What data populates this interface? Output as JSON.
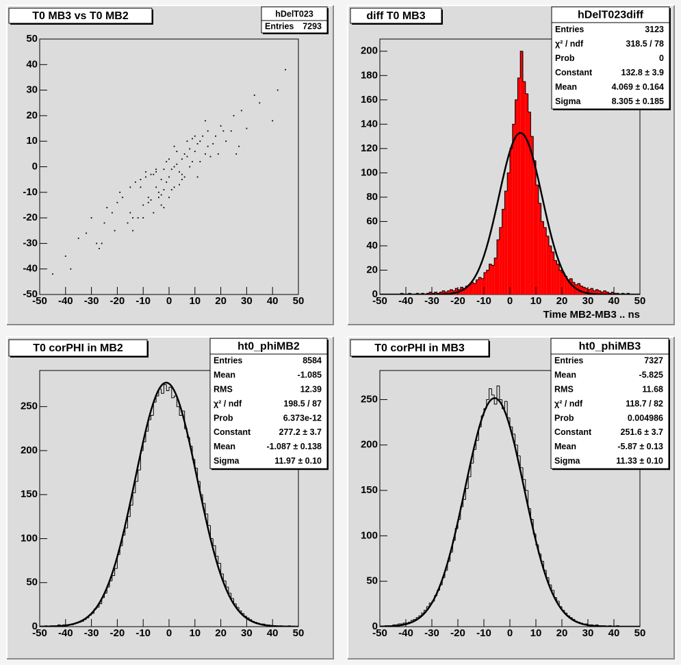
{
  "chart_data": [
    {
      "type": "scatter",
      "title": "T0 MB3 vs T0 MB2",
      "stats": {
        "title": "hDelT023",
        "rows": [
          [
            "Entries",
            "7293"
          ]
        ]
      },
      "xlim": [
        -50,
        50
      ],
      "xticks": [
        -50,
        -40,
        -30,
        -20,
        -10,
        0,
        10,
        20,
        30,
        40,
        50
      ],
      "ylim": [
        -50,
        50
      ],
      "yticks": [
        -50,
        -40,
        -30,
        -20,
        -10,
        0,
        10,
        20,
        30,
        40,
        50
      ],
      "color": "#000000",
      "x": [
        -5,
        -3,
        -8,
        2,
        5,
        10,
        12,
        -10,
        -15,
        0,
        3,
        8,
        -2,
        -6,
        -12,
        15,
        18,
        20,
        -20,
        -25,
        6,
        9,
        -4,
        -1,
        1,
        4,
        7,
        11,
        14,
        -7,
        -9,
        -11,
        -14,
        -18,
        22,
        25,
        -22,
        -28,
        -30,
        30,
        -35,
        35,
        40,
        -40,
        13,
        16,
        -16,
        -13,
        -3,
        2,
        0,
        -5,
        5,
        10,
        -10,
        8,
        -8,
        3,
        -3,
        17,
        24,
        -24,
        28,
        -32,
        33,
        -38,
        42,
        45,
        -45,
        -2,
        6,
        12,
        -6,
        9,
        -9,
        19,
        -19,
        21,
        -21,
        27,
        -27,
        1,
        -1,
        4,
        -4,
        7,
        -7,
        11,
        -11,
        14,
        -14,
        0,
        2,
        -2,
        5,
        -5,
        15,
        -15,
        26,
        -26
      ],
      "y": [
        -8,
        -5,
        -12,
        0,
        3,
        6,
        10,
        -15,
        -18,
        -4,
        1,
        7,
        -9,
        -3,
        -20,
        8,
        12,
        16,
        -14,
        -22,
        5,
        2,
        -10,
        -6,
        -1,
        -2,
        4,
        9,
        5,
        -13,
        -4,
        -8,
        -25,
        -12,
        10,
        20,
        -18,
        -30,
        -20,
        15,
        -28,
        25,
        18,
        -35,
        12,
        4,
        -22,
        -6,
        -15,
        -8,
        3,
        -2,
        -5,
        12,
        -20,
        0,
        -14,
        6,
        -11,
        9,
        14,
        -16,
        22,
        -26,
        28,
        -40,
        30,
        38,
        -42,
        -1,
        -4,
        2,
        -18,
        11,
        -2,
        5,
        -10,
        14,
        -25,
        8,
        -32,
        -9,
        2,
        -7,
        -12,
        10,
        -3,
        -4,
        -5,
        18,
        -20,
        -12,
        8,
        -16,
        -3,
        -1,
        14,
        -8,
        5,
        -30
      ]
    },
    {
      "type": "histogram",
      "title": "diff T0 MB3",
      "xlabel": "Time MB2-MB3  ..  ns",
      "stats": {
        "title": "hDelT023diff",
        "rows": [
          [
            "Entries",
            "3123"
          ],
          [
            "χ² / ndf",
            "318.5 / 78"
          ],
          [
            "Prob",
            "0"
          ],
          [
            "Constant",
            "132.8 ± 3.9"
          ],
          [
            "Mean",
            "4.069 ± 0.164"
          ],
          [
            "Sigma",
            "8.305 ± 0.185"
          ]
        ]
      },
      "xlim": [
        -50,
        50
      ],
      "xticks": [
        -50,
        -40,
        -30,
        -20,
        -10,
        0,
        10,
        20,
        30,
        40,
        50
      ],
      "ylim": [
        0,
        210
      ],
      "yticks": [
        0,
        20,
        40,
        60,
        80,
        100,
        120,
        140,
        160,
        180,
        200
      ],
      "color": "#ff0000",
      "bins": [
        -50,
        -49,
        -48,
        -47,
        -46,
        -45,
        -44,
        -43,
        -42,
        -41,
        -40,
        -39,
        -38,
        -37,
        -36,
        -35,
        -34,
        -33,
        -32,
        -31,
        -30,
        -29,
        -28,
        -27,
        -26,
        -25,
        -24,
        -23,
        -22,
        -21,
        -20,
        -19,
        -18,
        -17,
        -16,
        -15,
        -14,
        -13,
        -12,
        -11,
        -10,
        -9,
        -8,
        -7,
        -6,
        -5,
        -4,
        -3,
        -2,
        -1,
        0,
        1,
        2,
        3,
        4,
        5,
        6,
        7,
        8,
        9,
        10,
        11,
        12,
        13,
        14,
        15,
        16,
        17,
        18,
        19,
        20,
        21,
        22,
        23,
        24,
        25,
        26,
        27,
        28,
        29,
        30,
        31,
        32,
        33,
        34,
        35,
        36,
        37,
        38,
        39,
        40,
        41,
        42,
        43,
        44,
        45,
        46,
        47,
        48,
        49,
        50
      ],
      "values": [
        0,
        0,
        0,
        0,
        0,
        0,
        0,
        0,
        1,
        0,
        0,
        1,
        0,
        0,
        1,
        0,
        1,
        0,
        1,
        2,
        1,
        2,
        1,
        2,
        3,
        2,
        3,
        4,
        3,
        5,
        4,
        6,
        5,
        7,
        8,
        10,
        9,
        12,
        14,
        13,
        18,
        20,
        25,
        24,
        30,
        45,
        55,
        70,
        85,
        100,
        120,
        140,
        160,
        178,
        200,
        175,
        165,
        150,
        130,
        110,
        90,
        75,
        60,
        55,
        48,
        40,
        35,
        28,
        25,
        20,
        18,
        15,
        12,
        13,
        10,
        8,
        9,
        7,
        6,
        5,
        4,
        5,
        3,
        4,
        3,
        2,
        3,
        2,
        1,
        2,
        1,
        1,
        0,
        1,
        0,
        1,
        0,
        0,
        0,
        0
      ],
      "fit": {
        "constant": 132.8,
        "mean": 4.069,
        "sigma": 8.305
      }
    },
    {
      "type": "histogram",
      "title": "T0 corPHI in MB2",
      "stats": {
        "title": "ht0_phiMB2",
        "rows": [
          [
            "Entries",
            "8584"
          ],
          [
            "Mean",
            "-1.085"
          ],
          [
            "RMS",
            "12.39"
          ],
          [
            "χ² / ndf",
            "198.5 / 87"
          ],
          [
            "Prob",
            "6.373e-12"
          ],
          [
            "Constant",
            "277.2 ± 3.7"
          ],
          [
            "Mean",
            "-1.087 ± 0.138"
          ],
          [
            "Sigma",
            "11.97 ± 0.10"
          ]
        ]
      },
      "xlim": [
        -50,
        50
      ],
      "xticks": [
        -50,
        -40,
        -30,
        -20,
        -10,
        0,
        10,
        20,
        30,
        40,
        50
      ],
      "ylim": [
        0,
        291
      ],
      "yticks": [
        0,
        50,
        100,
        150,
        200,
        250
      ],
      "color": "none",
      "bins": [
        -50,
        -49,
        -48,
        -47,
        -46,
        -45,
        -44,
        -43,
        -42,
        -41,
        -40,
        -39,
        -38,
        -37,
        -36,
        -35,
        -34,
        -33,
        -32,
        -31,
        -30,
        -29,
        -28,
        -27,
        -26,
        -25,
        -24,
        -23,
        -22,
        -21,
        -20,
        -19,
        -18,
        -17,
        -16,
        -15,
        -14,
        -13,
        -12,
        -11,
        -10,
        -9,
        -8,
        -7,
        -6,
        -5,
        -4,
        -3,
        -2,
        -1,
        0,
        1,
        2,
        3,
        4,
        5,
        6,
        7,
        8,
        9,
        10,
        11,
        12,
        13,
        14,
        15,
        16,
        17,
        18,
        19,
        20,
        21,
        22,
        23,
        24,
        25,
        26,
        27,
        28,
        29,
        30,
        31,
        32,
        33,
        34,
        35,
        36,
        37,
        38,
        39,
        40,
        41,
        42,
        43,
        44,
        45,
        46,
        47,
        48,
        49,
        50
      ],
      "values": [
        0,
        0,
        1,
        0,
        1,
        1,
        0,
        2,
        1,
        2,
        1,
        2,
        2,
        3,
        4,
        5,
        6,
        8,
        10,
        13,
        15,
        20,
        22,
        26,
        33,
        38,
        45,
        52,
        58,
        66,
        82,
        92,
        104,
        112,
        125,
        138,
        152,
        165,
        178,
        200,
        210,
        222,
        235,
        240,
        255,
        262,
        270,
        265,
        275,
        268,
        272,
        260,
        262,
        250,
        240,
        245,
        225,
        215,
        205,
        190,
        180,
        165,
        150,
        140,
        128,
        115,
        100,
        92,
        80,
        72,
        60,
        52,
        45,
        38,
        32,
        26,
        22,
        18,
        15,
        12,
        10,
        8,
        6,
        5,
        4,
        3,
        3,
        2,
        2,
        1,
        1,
        1,
        0,
        1,
        0,
        0,
        1,
        0,
        0,
        0
      ],
      "fit": {
        "constant": 277.2,
        "mean": -1.087,
        "sigma": 11.97
      }
    },
    {
      "type": "histogram",
      "title": "T0 corPHI in MB3",
      "stats": {
        "title": "ht0_phiMB3",
        "rows": [
          [
            "Entries",
            "7327"
          ],
          [
            "Mean",
            "-5.825"
          ],
          [
            "RMS",
            "11.68"
          ],
          [
            "χ² / ndf",
            "118.7 / 82"
          ],
          [
            "Prob",
            "0.004986"
          ],
          [
            "Constant",
            "251.6 ± 3.7"
          ],
          [
            "Mean",
            "-5.87 ± 0.13"
          ],
          [
            "Sigma",
            "11.33 ± 0.10"
          ]
        ]
      },
      "xlim": [
        -50,
        50
      ],
      "xticks": [
        -50,
        -40,
        -30,
        -20,
        -10,
        0,
        10,
        20,
        30,
        40,
        50
      ],
      "ylim": [
        0,
        282
      ],
      "yticks": [
        0,
        50,
        100,
        150,
        200,
        250
      ],
      "color": "none",
      "bins": [
        -50,
        -49,
        -48,
        -47,
        -46,
        -45,
        -44,
        -43,
        -42,
        -41,
        -40,
        -39,
        -38,
        -37,
        -36,
        -35,
        -34,
        -33,
        -32,
        -31,
        -30,
        -29,
        -28,
        -27,
        -26,
        -25,
        -24,
        -23,
        -22,
        -21,
        -20,
        -19,
        -18,
        -17,
        -16,
        -15,
        -14,
        -13,
        -12,
        -11,
        -10,
        -9,
        -8,
        -7,
        -6,
        -5,
        -4,
        -3,
        -2,
        -1,
        0,
        1,
        2,
        3,
        4,
        5,
        6,
        7,
        8,
        9,
        10,
        11,
        12,
        13,
        14,
        15,
        16,
        17,
        18,
        19,
        20,
        21,
        22,
        23,
        24,
        25,
        26,
        27,
        28,
        29,
        30,
        31,
        32,
        33,
        34,
        35,
        36,
        37,
        38,
        39,
        40,
        41,
        42,
        43,
        44,
        45,
        46,
        47,
        48,
        49,
        50
      ],
      "values": [
        0,
        0,
        1,
        1,
        1,
        2,
        2,
        3,
        3,
        4,
        4,
        5,
        7,
        8,
        10,
        12,
        15,
        18,
        22,
        26,
        28,
        34,
        40,
        46,
        54,
        62,
        72,
        82,
        95,
        108,
        118,
        132,
        140,
        152,
        165,
        180,
        195,
        205,
        220,
        232,
        240,
        250,
        262,
        255,
        245,
        265,
        250,
        240,
        248,
        230,
        220,
        212,
        200,
        188,
        175,
        162,
        150,
        130,
        118,
        102,
        90,
        80,
        72,
        62,
        54,
        46,
        40,
        32,
        28,
        22,
        18,
        15,
        12,
        10,
        8,
        6,
        5,
        4,
        3,
        3,
        2,
        2,
        1,
        2,
        1,
        1,
        1,
        0,
        1,
        0,
        0,
        1,
        0,
        0,
        0,
        0,
        0,
        0,
        0,
        0
      ],
      "fit": {
        "constant": 251.6,
        "mean": -5.87,
        "sigma": 11.33
      }
    }
  ]
}
